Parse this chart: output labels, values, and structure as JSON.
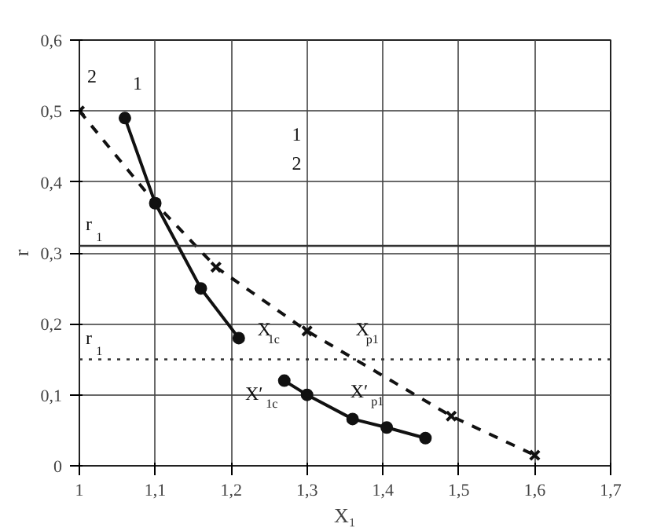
{
  "chart_data": {
    "type": "line",
    "xlabel": "X₁",
    "ylabel": "r",
    "xlim": [
      1,
      1.7
    ],
    "ylim": [
      0,
      0.6
    ],
    "xticks": [
      1,
      {
        "value": 1.1,
        "label": "1,1"
      },
      {
        "value": 1.2,
        "label": "1,2"
      },
      {
        "value": 1.3,
        "label": "1,3"
      },
      {
        "value": 1.4,
        "label": "1,4"
      },
      {
        "value": 1.5,
        "label": "1,5"
      },
      {
        "value": 1.6,
        "label": "1,6"
      },
      {
        "value": 1.7,
        "label": "1,7"
      }
    ],
    "yticks": [
      0,
      {
        "value": 0.1,
        "label": "0,1"
      },
      {
        "value": 0.2,
        "label": "0,2"
      },
      {
        "value": 0.3,
        "label": "0,3"
      },
      {
        "value": 0.4,
        "label": "0,4"
      },
      {
        "value": 0.5,
        "label": "0,5"
      },
      {
        "value": 0.6,
        "label": "0,6"
      }
    ],
    "grid": true,
    "series": [
      {
        "name": "1",
        "color": "#111111",
        "marker": "circle",
        "line_style": "solid",
        "x": [
          1.06,
          1.1,
          1.16,
          1.21,
          1.24,
          1.27,
          1.3,
          1.36,
          1.405,
          1.456
        ],
        "values": [
          0.49,
          0.37,
          0.25,
          0.18,
          null,
          0.12,
          0.1,
          0.066,
          0.054,
          0.039
        ]
      },
      {
        "name": "2",
        "color": "#111111",
        "marker": "cross",
        "line_style": "dashed",
        "x": [
          1,
          1.1,
          1.18,
          1.3,
          1.49,
          1.6
        ],
        "values": [
          0.5,
          0.37,
          0.28,
          0.19,
          0.07,
          0.015
        ]
      }
    ],
    "ref_lines": [
      {
        "axis": "y",
        "value": 0.31,
        "label": "r$_{1}$",
        "line_style": "solid",
        "color": "#333333"
      },
      {
        "axis": "y",
        "value": 0.15,
        "label": "r$_{1}$",
        "line_style": "dotted",
        "color": "#333333"
      }
    ],
    "annotations": [
      "1",
      "2",
      "X$_{1c}$",
      "X′$_{1c}$",
      "X$_{p1}$",
      "X′$_{p1}$"
    ]
  }
}
